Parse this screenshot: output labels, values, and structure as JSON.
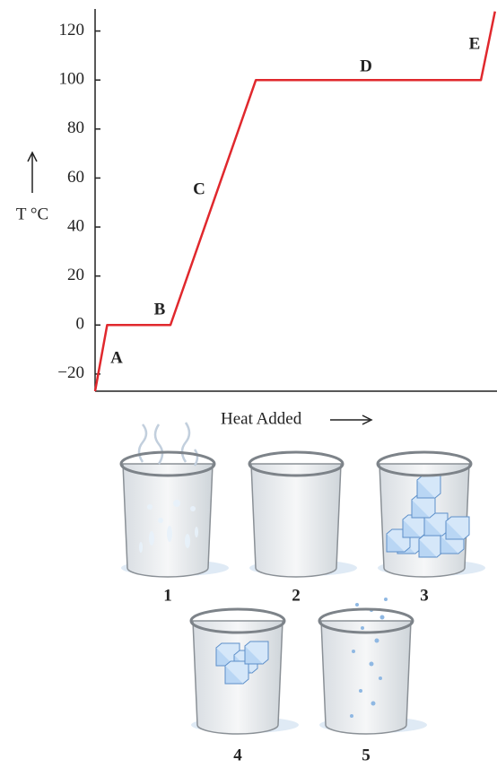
{
  "chart_data": {
    "type": "line",
    "y_label": "T °C",
    "x_label": "Heat Added",
    "series": [
      {
        "color": "#e0282d",
        "x": [
          0,
          3,
          18.75,
          40,
          96,
          99.5
        ],
        "values": [
          -27,
          0,
          0,
          100,
          100,
          128
        ]
      }
    ],
    "annotations": [
      "A",
      "B",
      "C",
      "D",
      "E"
    ],
    "xlim": [
      0,
      100
    ],
    "ylim": [
      -27,
      129
    ],
    "yticks": [
      {
        "value": -20,
        "label": "−20"
      },
      0,
      20,
      40,
      60,
      80,
      100,
      120
    ]
  },
  "beakers": {
    "labels": [
      "1",
      "2",
      "3",
      "4",
      "5"
    ]
  }
}
